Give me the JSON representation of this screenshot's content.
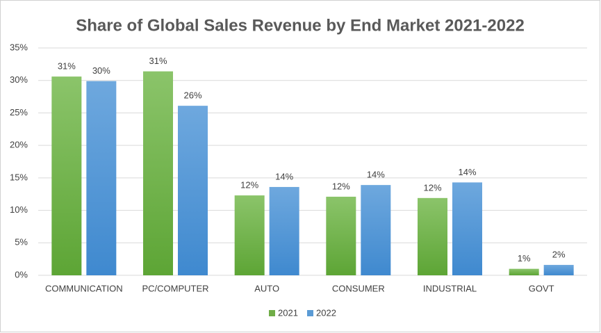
{
  "chart_data": {
    "type": "bar",
    "title": "Share of Global Sales Revenue by End Market 2021-2022",
    "categories": [
      "COMMUNICATION",
      "PC/COMPUTER",
      "AUTO",
      "CONSUMER",
      "INDUSTRIAL",
      "GOVT"
    ],
    "series": [
      {
        "name": "2021",
        "color": "#70ad47",
        "values": [
          30.6,
          31.4,
          12.3,
          12.1,
          11.9,
          1.0
        ],
        "value_labels": [
          "31%",
          "31%",
          "12%",
          "12%",
          "12%",
          "1%"
        ]
      },
      {
        "name": "2022",
        "color": "#5b9bd5",
        "values": [
          29.9,
          26.1,
          13.6,
          13.9,
          14.3,
          1.6
        ],
        "value_labels": [
          "30%",
          "26%",
          "14%",
          "14%",
          "14%",
          "2%"
        ]
      }
    ],
    "ylim": [
      0,
      35
    ],
    "yticks": [
      {
        "value": 0,
        "label": "0%"
      },
      {
        "value": 5,
        "label": "5%"
      },
      {
        "value": 10,
        "label": "10%"
      },
      {
        "value": 15,
        "label": "15%"
      },
      {
        "value": 20,
        "label": "20%"
      },
      {
        "value": 25,
        "label": "25%"
      },
      {
        "value": 30,
        "label": "30%"
      },
      {
        "value": 35,
        "label": "35%"
      }
    ],
    "grid": true,
    "legend": "bottom"
  }
}
